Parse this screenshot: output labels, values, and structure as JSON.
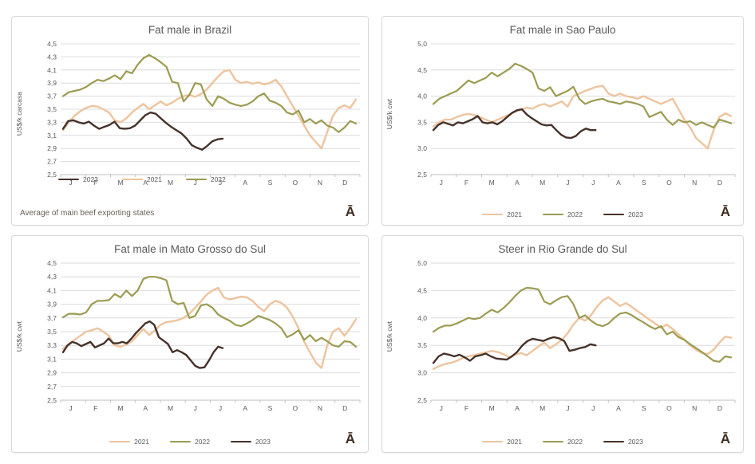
{
  "colors": {
    "2021": "#edc49e",
    "2022": "#9c9b52",
    "2023": "#46322a",
    "grid": "#dcdcdc",
    "axis": "#bfbfbf",
    "text": "#595959"
  },
  "watermark_glyph": "Ā",
  "chart_data": [
    {
      "type": "line",
      "title": "Fat male in Brazil",
      "ylabel": "US$/k carcasa",
      "footnote": "Average of main beef exporting states",
      "x_labels": [
        "J",
        "F",
        "M",
        "A",
        "M",
        "J",
        "J",
        "A",
        "S",
        "O",
        "N",
        "D"
      ],
      "ylim": [
        2.5,
        4.5
      ],
      "ytick_values": [
        4.5,
        4.3,
        4.1,
        3.9,
        3.7,
        3.5,
        3.3,
        3.1,
        2.9,
        2.7,
        2.5
      ],
      "ytick_labels": [
        "4,5",
        "4,3",
        "4,1",
        "3,9",
        "3,7",
        "3,5",
        "3,3",
        "3,1",
        "2,9",
        "2,7",
        "2,5"
      ],
      "legend_position": "inside",
      "legend_order": [
        "2023",
        "2021",
        "2022"
      ],
      "series": [
        {
          "name": "2021",
          "x_span": 1.0,
          "values": [
            3.18,
            3.3,
            3.4,
            3.47,
            3.52,
            3.55,
            3.54,
            3.5,
            3.45,
            3.33,
            3.3,
            3.36,
            3.45,
            3.52,
            3.58,
            3.5,
            3.56,
            3.62,
            3.56,
            3.6,
            3.66,
            3.7,
            3.72,
            3.69,
            3.73,
            3.8,
            3.9,
            4.0,
            4.08,
            4.1,
            3.95,
            3.9,
            3.92,
            3.89,
            3.91,
            3.88,
            3.9,
            3.95,
            3.85,
            3.7,
            3.55,
            3.4,
            3.25,
            3.1,
            3.0,
            2.9,
            3.15,
            3.4,
            3.52,
            3.56,
            3.52,
            3.65
          ]
        },
        {
          "name": "2022",
          "x_span": 1.0,
          "values": [
            3.7,
            3.76,
            3.78,
            3.8,
            3.84,
            3.9,
            3.95,
            3.93,
            3.97,
            4.02,
            3.96,
            4.08,
            4.05,
            4.18,
            4.28,
            4.33,
            4.28,
            4.22,
            4.15,
            3.92,
            3.9,
            3.62,
            3.72,
            3.9,
            3.88,
            3.65,
            3.55,
            3.7,
            3.66,
            3.6,
            3.57,
            3.55,
            3.57,
            3.62,
            3.7,
            3.74,
            3.63,
            3.6,
            3.55,
            3.45,
            3.42,
            3.48,
            3.3,
            3.35,
            3.28,
            3.33,
            3.25,
            3.22,
            3.15,
            3.22,
            3.32,
            3.28
          ]
        },
        {
          "name": "2023",
          "x_span": 0.545,
          "values": [
            3.2,
            3.32,
            3.33,
            3.3,
            3.28,
            3.31,
            3.25,
            3.2,
            3.23,
            3.26,
            3.31,
            3.21,
            3.2,
            3.21,
            3.25,
            3.33,
            3.41,
            3.45,
            3.43,
            3.36,
            3.29,
            3.23,
            3.18,
            3.13,
            3.05,
            2.95,
            2.91,
            2.88,
            2.94,
            3.01,
            3.04,
            3.05
          ]
        }
      ]
    },
    {
      "type": "line",
      "title": "Fat male in Sao Paulo",
      "ylabel": "US$/k cwt",
      "x_labels": [
        "J",
        "F",
        "M",
        "A",
        "M",
        "J",
        "J",
        "A",
        "S",
        "O",
        "N",
        "D"
      ],
      "ylim": [
        2.5,
        5.0
      ],
      "ytick_values": [
        5.0,
        4.5,
        4.0,
        3.5,
        3.0,
        2.5
      ],
      "ytick_labels": [
        "5,0",
        "4,5",
        "4,0",
        "3,5",
        "3,0",
        "2,5"
      ],
      "legend_position": "below",
      "legend_order": [
        "2021",
        "2022",
        "2023"
      ],
      "series": [
        {
          "name": "2021",
          "x_span": 1.0,
          "values": [
            3.42,
            3.5,
            3.55,
            3.55,
            3.6,
            3.64,
            3.66,
            3.64,
            3.6,
            3.55,
            3.5,
            3.55,
            3.6,
            3.65,
            3.7,
            3.74,
            3.78,
            3.76,
            3.82,
            3.85,
            3.8,
            3.85,
            3.9,
            3.8,
            4.0,
            4.05,
            4.1,
            4.14,
            4.18,
            4.2,
            4.05,
            4.0,
            4.05,
            4.0,
            3.98,
            3.95,
            4.0,
            3.95,
            3.9,
            3.85,
            3.9,
            3.95,
            3.75,
            3.55,
            3.4,
            3.2,
            3.1,
            3.0,
            3.35,
            3.6,
            3.67,
            3.62
          ]
        },
        {
          "name": "2022",
          "x_span": 1.0,
          "values": [
            3.85,
            3.95,
            4.0,
            4.05,
            4.1,
            4.2,
            4.3,
            4.25,
            4.3,
            4.35,
            4.45,
            4.38,
            4.45,
            4.52,
            4.62,
            4.58,
            4.52,
            4.45,
            4.15,
            4.1,
            4.17,
            4.0,
            4.05,
            4.1,
            4.18,
            3.95,
            3.85,
            3.9,
            3.93,
            3.95,
            3.9,
            3.88,
            3.85,
            3.9,
            3.88,
            3.85,
            3.8,
            3.6,
            3.65,
            3.7,
            3.55,
            3.45,
            3.55,
            3.5,
            3.52,
            3.45,
            3.5,
            3.45,
            3.4,
            3.55,
            3.52,
            3.48
          ]
        },
        {
          "name": "2023",
          "x_span": 0.545,
          "values": [
            3.35,
            3.45,
            3.5,
            3.47,
            3.44,
            3.5,
            3.48,
            3.52,
            3.56,
            3.62,
            3.5,
            3.48,
            3.5,
            3.46,
            3.52,
            3.6,
            3.68,
            3.73,
            3.75,
            3.65,
            3.58,
            3.52,
            3.46,
            3.44,
            3.45,
            3.35,
            3.26,
            3.21,
            3.2,
            3.24,
            3.33,
            3.38,
            3.35,
            3.35
          ]
        }
      ]
    },
    {
      "type": "line",
      "title": "Fat male in Mato Grosso do Sul",
      "ylabel": "US$/k cwt",
      "x_labels": [
        "J",
        "F",
        "M",
        "A",
        "M",
        "J",
        "J",
        "A",
        "S",
        "O",
        "N",
        "D"
      ],
      "ylim": [
        2.5,
        4.5
      ],
      "ytick_values": [
        4.5,
        4.3,
        4.1,
        3.9,
        3.7,
        3.5,
        3.3,
        3.1,
        2.9,
        2.7,
        2.5
      ],
      "ytick_labels": [
        "4,5",
        "4,3",
        "4,1",
        "3,9",
        "3,7",
        "3,5",
        "3,3",
        "3,1",
        "2,9",
        "2,7",
        "2,5"
      ],
      "legend_position": "below",
      "legend_order": [
        "2021",
        "2022",
        "2023"
      ],
      "series": [
        {
          "name": "2021",
          "x_span": 1.0,
          "values": [
            3.25,
            3.32,
            3.38,
            3.44,
            3.5,
            3.52,
            3.55,
            3.5,
            3.44,
            3.3,
            3.28,
            3.31,
            3.36,
            3.45,
            3.54,
            3.45,
            3.52,
            3.6,
            3.64,
            3.65,
            3.67,
            3.7,
            3.76,
            3.85,
            3.94,
            4.04,
            4.1,
            4.14,
            4.0,
            3.97,
            3.99,
            4.01,
            4.0,
            3.95,
            3.86,
            3.8,
            3.9,
            3.95,
            3.92,
            3.85,
            3.72,
            3.55,
            3.35,
            3.2,
            3.05,
            2.97,
            3.3,
            3.5,
            3.55,
            3.44,
            3.55,
            3.68
          ]
        },
        {
          "name": "2022",
          "x_span": 1.0,
          "values": [
            3.71,
            3.76,
            3.76,
            3.75,
            3.78,
            3.9,
            3.95,
            3.95,
            3.96,
            4.05,
            4.0,
            4.1,
            4.02,
            4.1,
            4.27,
            4.3,
            4.3,
            4.28,
            4.25,
            3.95,
            3.9,
            3.92,
            3.7,
            3.73,
            3.88,
            3.9,
            3.85,
            3.75,
            3.7,
            3.66,
            3.6,
            3.58,
            3.62,
            3.67,
            3.73,
            3.7,
            3.67,
            3.62,
            3.55,
            3.42,
            3.46,
            3.52,
            3.38,
            3.45,
            3.36,
            3.41,
            3.36,
            3.3,
            3.28,
            3.36,
            3.35,
            3.28
          ]
        },
        {
          "name": "2023",
          "x_span": 0.545,
          "values": [
            3.2,
            3.3,
            3.35,
            3.33,
            3.29,
            3.32,
            3.35,
            3.27,
            3.3,
            3.33,
            3.4,
            3.33,
            3.33,
            3.35,
            3.33,
            3.4,
            3.48,
            3.55,
            3.62,
            3.65,
            3.6,
            3.42,
            3.37,
            3.32,
            3.2,
            3.23,
            3.2,
            3.16,
            3.08,
            3.0,
            2.97,
            2.98,
            3.08,
            3.2,
            3.28,
            3.26
          ]
        }
      ]
    },
    {
      "type": "line",
      "title": "Steer in Rio Grande do Sul",
      "ylabel": "US$/k cwt",
      "x_labels": [
        "J",
        "F",
        "M",
        "A",
        "M",
        "J",
        "J",
        "A",
        "S",
        "O",
        "N",
        "D"
      ],
      "ylim": [
        2.5,
        5.0
      ],
      "ytick_values": [
        5.0,
        4.5,
        4.0,
        3.5,
        3.0,
        2.5
      ],
      "ytick_labels": [
        "5,0",
        "4,5",
        "4,0",
        "3,5",
        "3,0",
        "2,5"
      ],
      "legend_position": "below",
      "legend_order": [
        "2021",
        "2022",
        "2023"
      ],
      "series": [
        {
          "name": "2021",
          "x_span": 1.0,
          "values": [
            3.07,
            3.12,
            3.16,
            3.18,
            3.22,
            3.27,
            3.3,
            3.32,
            3.35,
            3.37,
            3.4,
            3.38,
            3.34,
            3.28,
            3.33,
            3.36,
            3.32,
            3.4,
            3.48,
            3.55,
            3.45,
            3.52,
            3.6,
            3.72,
            3.88,
            4.0,
            3.95,
            4.05,
            4.2,
            4.32,
            4.38,
            4.3,
            4.22,
            4.27,
            4.2,
            4.12,
            4.05,
            3.97,
            3.9,
            3.82,
            3.88,
            3.8,
            3.7,
            3.6,
            3.5,
            3.42,
            3.36,
            3.34,
            3.42,
            3.55,
            3.66,
            3.64
          ]
        },
        {
          "name": "2022",
          "x_span": 1.0,
          "values": [
            3.75,
            3.82,
            3.86,
            3.86,
            3.9,
            3.95,
            4.0,
            3.98,
            4.0,
            4.08,
            4.15,
            4.1,
            4.18,
            4.28,
            4.4,
            4.5,
            4.55,
            4.54,
            4.52,
            4.3,
            4.25,
            4.32,
            4.38,
            4.4,
            4.25,
            4.0,
            4.05,
            3.95,
            3.88,
            3.85,
            3.9,
            4.0,
            4.08,
            4.1,
            4.05,
            3.98,
            3.92,
            3.85,
            3.8,
            3.85,
            3.7,
            3.75,
            3.65,
            3.6,
            3.52,
            3.45,
            3.38,
            3.3,
            3.22,
            3.2,
            3.3,
            3.28
          ]
        },
        {
          "name": "2023",
          "x_span": 0.545,
          "values": [
            3.18,
            3.3,
            3.35,
            3.33,
            3.3,
            3.33,
            3.28,
            3.22,
            3.3,
            3.32,
            3.35,
            3.3,
            3.26,
            3.25,
            3.24,
            3.3,
            3.38,
            3.5,
            3.58,
            3.62,
            3.6,
            3.58,
            3.62,
            3.65,
            3.63,
            3.58,
            3.4,
            3.42,
            3.45,
            3.47,
            3.52,
            3.5
          ]
        }
      ]
    }
  ]
}
